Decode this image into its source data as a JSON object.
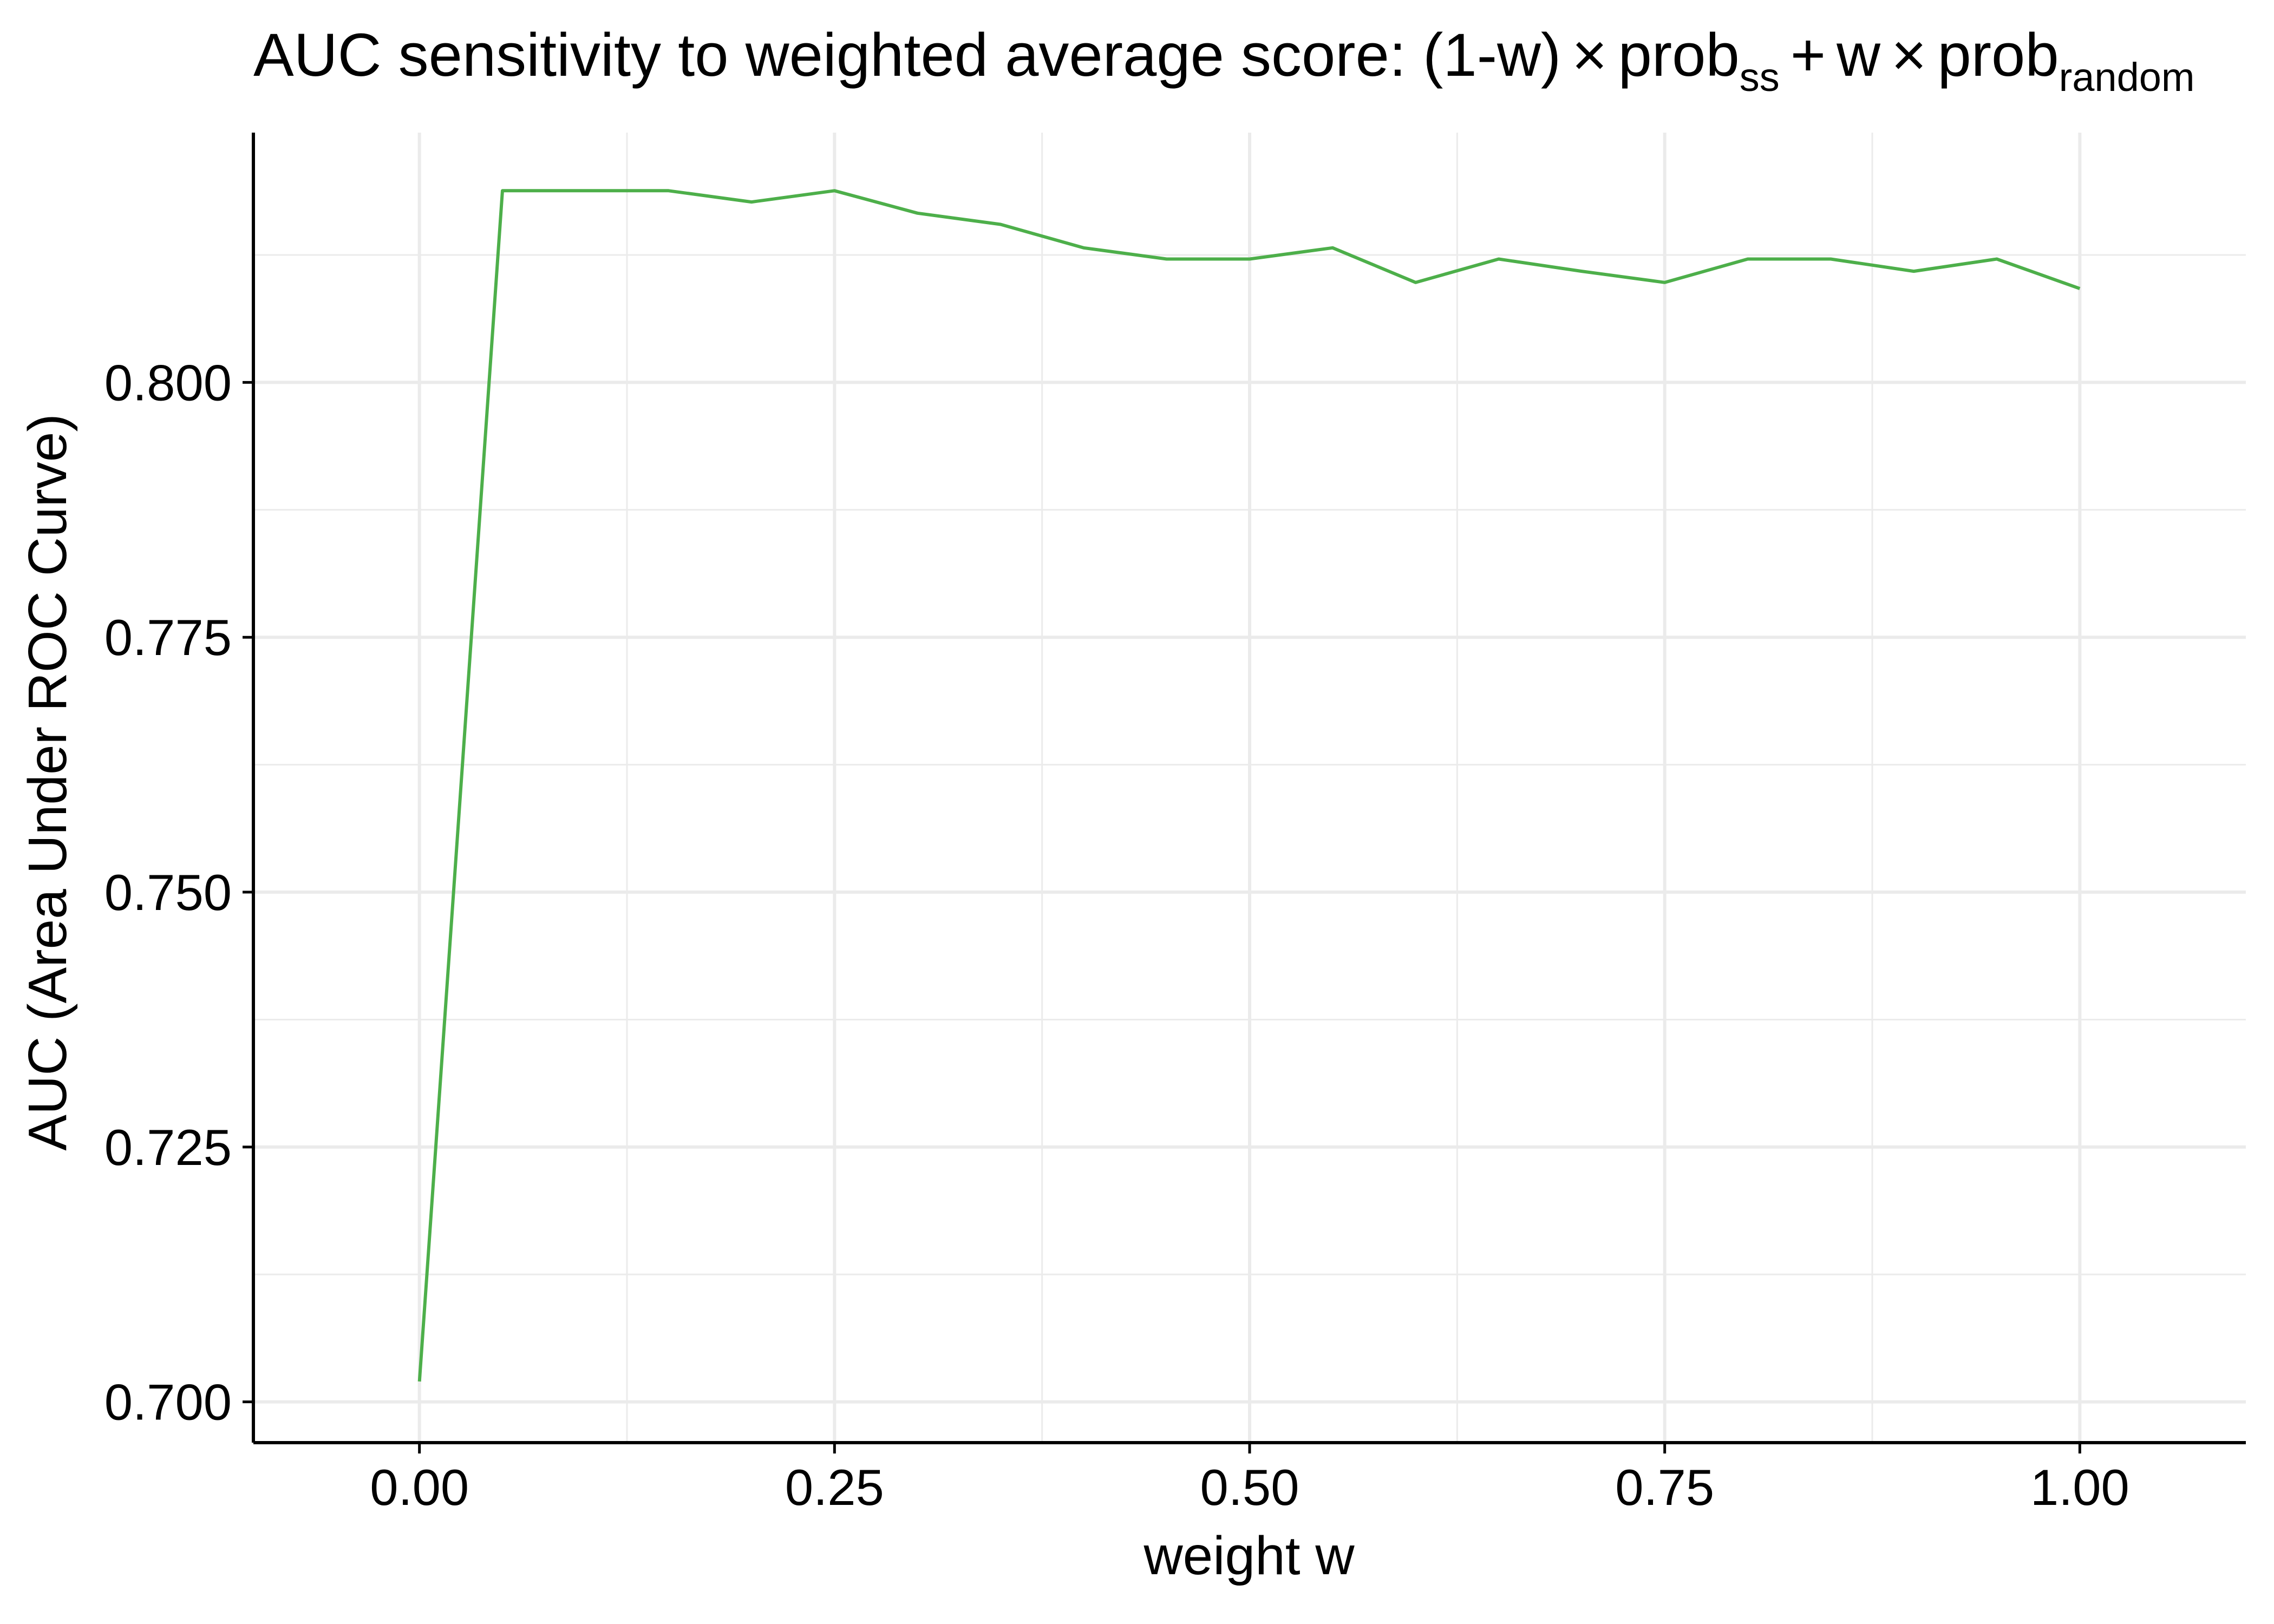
{
  "chart_data": {
    "type": "line",
    "title": {
      "prefix": "AUC sensitivity to weighted average score: (1-w)",
      "times": "×",
      "prob": "prob",
      "sub1": "ss",
      "plus": "+",
      "w": "w",
      "sub2": "random"
    },
    "xlabel": "weight w",
    "ylabel": "AUC (Area Under ROC Curve)",
    "xlim": [
      -0.1,
      1.1
    ],
    "ylim": [
      0.696,
      0.8245
    ],
    "x_ticks": [
      0.0,
      0.25,
      0.5,
      0.75,
      1.0
    ],
    "x_tick_labels": [
      "0.00",
      "0.25",
      "0.50",
      "0.75",
      "1.00"
    ],
    "y_ticks": [
      0.7,
      0.725,
      0.75,
      0.775,
      0.8
    ],
    "y_tick_labels": [
      "0.700",
      "0.725",
      "0.750",
      "0.775",
      "0.800"
    ],
    "grid": true,
    "series": [
      {
        "color": "#4DAF4A",
        "x": [
          0.0,
          0.05,
          0.1,
          0.15,
          0.2,
          0.25,
          0.3,
          0.35,
          0.4,
          0.45,
          0.5,
          0.55,
          0.6,
          0.65,
          0.7,
          0.75,
          0.8,
          0.85,
          0.9,
          0.95,
          1.0
        ],
        "y": [
          0.702,
          0.8188,
          0.8188,
          0.8188,
          0.8177,
          0.8188,
          0.8166,
          0.8155,
          0.8132,
          0.8121,
          0.8121,
          0.8132,
          0.8098,
          0.8121,
          0.8109,
          0.8098,
          0.8121,
          0.8121,
          0.8109,
          0.8121,
          0.8092
        ]
      }
    ]
  }
}
